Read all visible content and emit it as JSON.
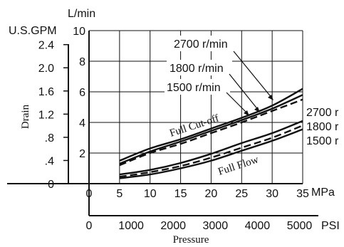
{
  "chart_data": {
    "type": "line",
    "title": "",
    "flow_unit": "L/min",
    "gpm_unit": "U.S.GPM",
    "ylabel": "Drain",
    "xlabel": "Pressure",
    "mpa_unit": "MPa",
    "psi_unit": "PSI",
    "x_mpa_ticks": [
      "0",
      "5",
      "10",
      "15",
      "20",
      "25",
      "30",
      "35"
    ],
    "x_psi_ticks": [
      "0",
      "1000",
      "2000",
      "3000",
      "4000",
      "5000"
    ],
    "y_lmin_ticks": [
      "2",
      "4",
      "6",
      "8",
      "10"
    ],
    "y_gpm_ticks": [
      "2.4",
      "2.0",
      "1.6",
      "1.2",
      ".8",
      ".4",
      "0"
    ],
    "x_range_mpa": [
      0,
      35
    ],
    "y_range_lmin": [
      0,
      10
    ],
    "grid": true,
    "group_labels": [
      "Full Cut-off",
      "Full Flow"
    ],
    "speed_labels": [
      "2700 r/min",
      "1800 r/min",
      "1500 r/min"
    ],
    "right_labels": [
      "2700 r",
      "1800 r",
      "1500 r"
    ],
    "series": [
      {
        "name": "2700 r/min",
        "group": "Full Cut-off",
        "style": "solid",
        "x": [
          5,
          10,
          15,
          20,
          25,
          30,
          35
        ],
        "y": [
          1.5,
          2.3,
          2.9,
          3.6,
          4.3,
          5.1,
          6.2
        ]
      },
      {
        "name": "1800 r/min",
        "group": "Full Cut-off",
        "style": "solid",
        "x": [
          5,
          10,
          15,
          20,
          25,
          30,
          35
        ],
        "y": [
          1.3,
          2.1,
          2.75,
          3.45,
          4.15,
          4.9,
          5.8
        ]
      },
      {
        "name": "1500 r/min",
        "group": "Full Cut-off",
        "style": "dash",
        "x": [
          5,
          10,
          15,
          20,
          25,
          30,
          35
        ],
        "y": [
          1.2,
          2.0,
          2.6,
          3.3,
          4.0,
          4.75,
          5.5
        ]
      },
      {
        "name": "2700 r/min",
        "group": "Full Flow",
        "style": "solid",
        "x": [
          5,
          10,
          15,
          20,
          25,
          30,
          35
        ],
        "y": [
          0.6,
          0.9,
          1.35,
          1.95,
          2.65,
          3.3,
          4.1
        ]
      },
      {
        "name": "1800 r/min",
        "group": "Full Flow",
        "style": "dash",
        "x": [
          5,
          10,
          15,
          20,
          25,
          30,
          35
        ],
        "y": [
          0.45,
          0.75,
          1.15,
          1.7,
          2.35,
          3.0,
          3.8
        ]
      },
      {
        "name": "1500 r/min",
        "group": "Full Flow",
        "style": "solid",
        "x": [
          5,
          10,
          15,
          20,
          25,
          30,
          35
        ],
        "y": [
          0.35,
          0.6,
          1.0,
          1.5,
          2.15,
          2.8,
          3.55
        ]
      }
    ]
  }
}
